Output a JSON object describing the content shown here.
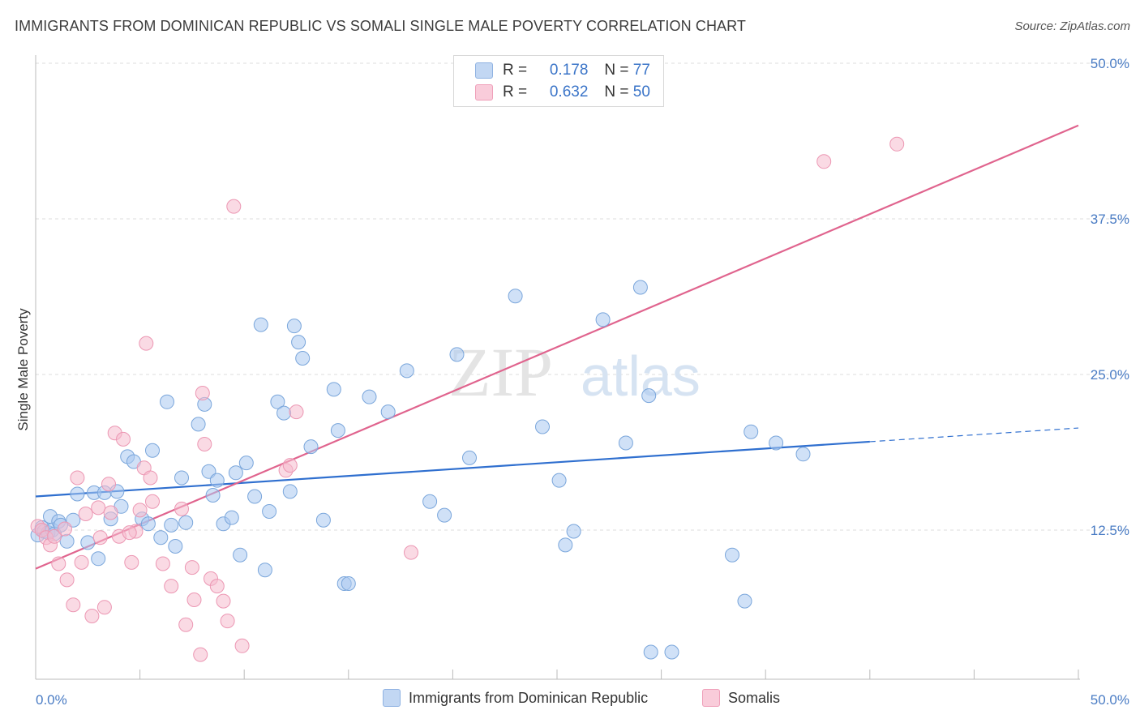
{
  "header": {
    "title": "IMMIGRANTS FROM DOMINICAN REPUBLIC VS SOMALI SINGLE MALE POVERTY CORRELATION CHART",
    "source": "Source: ZipAtlas.com"
  },
  "watermark": {
    "zip": "ZIP",
    "atlas": "atlas"
  },
  "legend": {
    "rows": [
      {
        "r_label": "R =",
        "r_value": "0.178",
        "n_label": "N =",
        "n_value": "77",
        "color": "#a9c8f0"
      },
      {
        "r_label": "R =",
        "r_value": "0.632",
        "n_label": "N =",
        "n_value": "50",
        "color": "#f6bccd"
      }
    ]
  },
  "bottom_legend": {
    "series1": "Immigrants from Dominican Republic",
    "series2": "Somalis"
  },
  "colors": {
    "blue_fill": "#a9c8f0",
    "blue_stroke": "#7aa6db",
    "blue_line": "#2f6fcf",
    "pink_fill": "#f6bccd",
    "pink_stroke": "#ec97b3",
    "pink_line": "#e0648e",
    "tick_text": "#4a7cc4",
    "grid": "#dcdcdc"
  },
  "chart_data": {
    "type": "scatter",
    "title": "IMMIGRANTS FROM DOMINICAN REPUBLIC VS SOMALI SINGLE MALE POVERTY CORRELATION CHART",
    "xlabel": "",
    "ylabel": "Single Male Poverty",
    "xlim": [
      0,
      50
    ],
    "ylim": [
      0,
      50
    ],
    "x_tick_labels": [
      "0.0%",
      "50.0%"
    ],
    "y_ticks": [
      12.5,
      25.0,
      37.5,
      50.0
    ],
    "y_tick_labels": [
      "12.5%",
      "25.0%",
      "37.5%",
      "50.0%"
    ],
    "grid": true,
    "legend_position": "top-center",
    "series": [
      {
        "name": "Immigrants from Dominican Republic",
        "color": "#a9c8f0",
        "r": 0.178,
        "n": 77,
        "trend": {
          "x": [
            0,
            40
          ],
          "y": [
            15.2,
            19.6
          ],
          "dashed_to": [
            50,
            20.7
          ]
        },
        "points": [
          [
            0.1,
            12.1
          ],
          [
            0.3,
            12.7
          ],
          [
            0.4,
            12.4
          ],
          [
            0.6,
            12.3
          ],
          [
            0.7,
            13.6
          ],
          [
            0.8,
            12.5
          ],
          [
            0.9,
            12.2
          ],
          [
            1.1,
            13.2
          ],
          [
            1.2,
            12.9
          ],
          [
            1.5,
            11.6
          ],
          [
            1.8,
            13.3
          ],
          [
            2.0,
            15.4
          ],
          [
            2.5,
            11.5
          ],
          [
            2.8,
            15.5
          ],
          [
            3.0,
            10.2
          ],
          [
            3.3,
            15.5
          ],
          [
            3.6,
            13.4
          ],
          [
            3.9,
            15.6
          ],
          [
            4.1,
            14.4
          ],
          [
            4.4,
            18.4
          ],
          [
            4.7,
            18.0
          ],
          [
            5.1,
            13.4
          ],
          [
            5.4,
            13.0
          ],
          [
            5.6,
            18.9
          ],
          [
            6.0,
            11.9
          ],
          [
            6.3,
            22.8
          ],
          [
            6.5,
            12.9
          ],
          [
            6.7,
            11.2
          ],
          [
            7.0,
            16.7
          ],
          [
            7.2,
            13.1
          ],
          [
            7.8,
            21.0
          ],
          [
            8.1,
            22.6
          ],
          [
            8.3,
            17.2
          ],
          [
            8.5,
            15.3
          ],
          [
            8.7,
            16.5
          ],
          [
            9.0,
            13.0
          ],
          [
            9.4,
            13.5
          ],
          [
            9.6,
            17.1
          ],
          [
            9.8,
            10.5
          ],
          [
            10.1,
            17.9
          ],
          [
            10.5,
            15.2
          ],
          [
            10.8,
            29.0
          ],
          [
            11.0,
            9.3
          ],
          [
            11.2,
            14.0
          ],
          [
            11.6,
            22.8
          ],
          [
            11.9,
            21.9
          ],
          [
            12.2,
            15.6
          ],
          [
            12.4,
            28.9
          ],
          [
            12.6,
            27.6
          ],
          [
            12.8,
            26.3
          ],
          [
            13.2,
            19.2
          ],
          [
            13.8,
            13.3
          ],
          [
            14.3,
            23.8
          ],
          [
            14.5,
            20.5
          ],
          [
            14.8,
            8.2
          ],
          [
            15.0,
            8.2
          ],
          [
            16.0,
            23.2
          ],
          [
            16.9,
            22.0
          ],
          [
            17.8,
            25.3
          ],
          [
            18.9,
            14.8
          ],
          [
            19.6,
            13.7
          ],
          [
            20.2,
            26.6
          ],
          [
            20.8,
            18.3
          ],
          [
            23.0,
            31.3
          ],
          [
            24.3,
            20.8
          ],
          [
            25.1,
            16.5
          ],
          [
            25.4,
            11.3
          ],
          [
            25.8,
            12.4
          ],
          [
            27.2,
            29.4
          ],
          [
            28.3,
            19.5
          ],
          [
            29.0,
            32.0
          ],
          [
            29.4,
            23.3
          ],
          [
            29.5,
            2.7
          ],
          [
            30.5,
            2.7
          ],
          [
            33.4,
            10.5
          ],
          [
            34.0,
            6.8
          ],
          [
            34.3,
            20.4
          ],
          [
            35.5,
            19.5
          ],
          [
            36.8,
            18.6
          ]
        ]
      },
      {
        "name": "Somalis",
        "color": "#f6bccd",
        "r": 0.632,
        "n": 50,
        "trend": {
          "x": [
            0,
            50
          ],
          "y": [
            9.4,
            45.0
          ]
        },
        "points": [
          [
            0.1,
            12.8
          ],
          [
            0.3,
            12.5
          ],
          [
            0.5,
            11.9
          ],
          [
            0.7,
            11.3
          ],
          [
            0.9,
            12.0
          ],
          [
            1.1,
            9.8
          ],
          [
            1.4,
            12.6
          ],
          [
            1.5,
            8.5
          ],
          [
            1.8,
            6.5
          ],
          [
            2.0,
            16.7
          ],
          [
            2.2,
            9.9
          ],
          [
            2.4,
            13.8
          ],
          [
            2.7,
            5.6
          ],
          [
            3.0,
            14.3
          ],
          [
            3.1,
            11.9
          ],
          [
            3.3,
            6.3
          ],
          [
            3.5,
            16.2
          ],
          [
            3.6,
            13.9
          ],
          [
            3.8,
            20.3
          ],
          [
            4.0,
            12.0
          ],
          [
            4.2,
            19.8
          ],
          [
            4.6,
            9.9
          ],
          [
            4.8,
            12.4
          ],
          [
            5.0,
            14.1
          ],
          [
            5.2,
            17.5
          ],
          [
            5.3,
            27.5
          ],
          [
            5.5,
            16.7
          ],
          [
            5.6,
            14.8
          ],
          [
            6.1,
            9.8
          ],
          [
            6.5,
            8.0
          ],
          [
            7.0,
            14.2
          ],
          [
            7.2,
            4.9
          ],
          [
            7.5,
            9.5
          ],
          [
            7.6,
            6.9
          ],
          [
            7.9,
            2.5
          ],
          [
            8.0,
            23.5
          ],
          [
            8.1,
            19.4
          ],
          [
            8.4,
            8.6
          ],
          [
            8.7,
            8.0
          ],
          [
            9.0,
            6.8
          ],
          [
            9.2,
            5.2
          ],
          [
            9.5,
            38.5
          ],
          [
            9.9,
            3.2
          ],
          [
            12.0,
            17.3
          ],
          [
            12.2,
            17.7
          ],
          [
            12.5,
            22.0
          ],
          [
            18.0,
            10.7
          ],
          [
            37.8,
            42.1
          ],
          [
            41.3,
            43.5
          ],
          [
            4.5,
            12.3
          ]
        ]
      }
    ]
  }
}
